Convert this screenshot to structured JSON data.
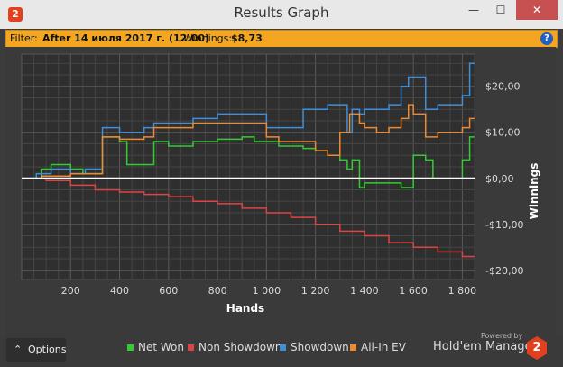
{
  "window": {
    "app_icon_text": "2",
    "title": "Results Graph",
    "controls": {
      "minimize": "—",
      "maximize": "☐",
      "close": "✕"
    }
  },
  "filter": {
    "label": "Filter:",
    "value": "After 14 июля 2017 г. (12:00)",
    "winnings_label": "Winnings:",
    "winnings_value": "$8,73",
    "help_icon": "?"
  },
  "chart_data": {
    "type": "line",
    "xlabel": "Hands",
    "ylabel": "Winnings",
    "xlim": [
      0,
      1850
    ],
    "ylim": [
      -22,
      27
    ],
    "x_ticks": [
      200,
      400,
      600,
      800,
      1000,
      1200,
      1400,
      1600,
      1800
    ],
    "x_tick_labels": [
      "200",
      "400",
      "600",
      "800",
      "1 000",
      "1 200",
      "1 400",
      "1 600",
      "1 800"
    ],
    "y_ticks": [
      20,
      10,
      0,
      -10,
      -20
    ],
    "y_tick_labels": [
      "$20,00",
      "$10,00",
      "$0,00",
      "-$10,00",
      "-$20,00"
    ],
    "grid": true,
    "legend_position": "bottom",
    "series": [
      {
        "name": "Net Won",
        "color": "#33cc33",
        "x": [
          0,
          80,
          120,
          200,
          250,
          320,
          330,
          400,
          430,
          500,
          540,
          600,
          650,
          700,
          750,
          800,
          850,
          900,
          950,
          1000,
          1050,
          1100,
          1150,
          1200,
          1250,
          1300,
          1330,
          1350,
          1380,
          1400,
          1450,
          1500,
          1550,
          1600,
          1650,
          1680,
          1700,
          1750,
          1780,
          1800,
          1830,
          1850
        ],
        "y": [
          0,
          2,
          3,
          2,
          1,
          1,
          9,
          8,
          3,
          3,
          8,
          7,
          7,
          8,
          8,
          8.5,
          8.5,
          9,
          8,
          8,
          7,
          7,
          6.5,
          6,
          5,
          4,
          2,
          4,
          -2,
          -1,
          -1,
          -1,
          -2,
          5,
          4,
          0,
          0,
          0,
          0,
          4,
          9,
          9
        ]
      },
      {
        "name": "Non Showdown",
        "color": "#dd4444",
        "x": [
          0,
          100,
          200,
          300,
          400,
          500,
          600,
          700,
          800,
          900,
          1000,
          1100,
          1200,
          1300,
          1400,
          1500,
          1600,
          1700,
          1750,
          1800,
          1850
        ],
        "y": [
          0,
          -0.5,
          -1.5,
          -2.5,
          -3,
          -3.5,
          -4,
          -5,
          -5.5,
          -6.5,
          -7.5,
          -8.5,
          -10,
          -11.5,
          -12.5,
          -14,
          -15,
          -16,
          -16,
          -17,
          -17
        ]
      },
      {
        "name": "Showdown",
        "color": "#3f8fdd",
        "x": [
          0,
          60,
          120,
          200,
          260,
          320,
          330,
          400,
          500,
          540,
          600,
          700,
          800,
          900,
          1000,
          1030,
          1100,
          1150,
          1200,
          1250,
          1300,
          1330,
          1350,
          1380,
          1400,
          1450,
          1500,
          1550,
          1580,
          1600,
          1650,
          1700,
          1750,
          1800,
          1830,
          1850
        ],
        "y": [
          0,
          1,
          2,
          1,
          2,
          2,
          11,
          10,
          11,
          12,
          12,
          13,
          14,
          14,
          11,
          11,
          11,
          15,
          15,
          16,
          16,
          10,
          15,
          14,
          15,
          15,
          16,
          20,
          22,
          22,
          15,
          16,
          16,
          18,
          25,
          25
        ]
      },
      {
        "name": "All-In EV",
        "color": "#f08a30",
        "x": [
          0,
          80,
          200,
          320,
          330,
          400,
          500,
          540,
          600,
          700,
          800,
          900,
          1000,
          1050,
          1100,
          1200,
          1250,
          1300,
          1340,
          1380,
          1400,
          1450,
          1500,
          1550,
          1580,
          1600,
          1650,
          1700,
          1750,
          1800,
          1830,
          1850
        ],
        "y": [
          0,
          0.5,
          1,
          1,
          9,
          8.5,
          9,
          11,
          11,
          12,
          12,
          12,
          9,
          8,
          8,
          6,
          5,
          10,
          14,
          12,
          11,
          10,
          11,
          13,
          16,
          14,
          9,
          10,
          10,
          11,
          13,
          13
        ]
      }
    ]
  },
  "legend": {
    "items": [
      "Net Won",
      "Non Showdown",
      "Showdown",
      "All-In EV"
    ]
  },
  "footer": {
    "options_label": "Options",
    "options_icon": "⌃",
    "powered_by": "Powered by",
    "product": "Hold'em Manager",
    "badge": "2"
  }
}
